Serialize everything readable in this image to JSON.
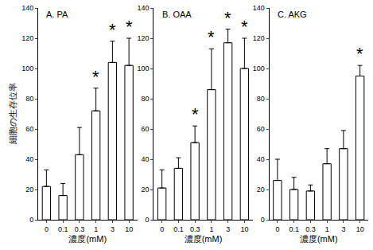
{
  "chart_data": [
    {
      "type": "bar",
      "title": "A. PA",
      "x_label": "濃度(mM)",
      "y_label": "細胞の生存位率",
      "categories": [
        "0",
        "0.1",
        "0.3",
        "1",
        "3",
        "10"
      ],
      "values": [
        22,
        16,
        43,
        72,
        104,
        102
      ],
      "errors": [
        11,
        8,
        18,
        15,
        14,
        18
      ],
      "color": "#ffffff",
      "ylim": [
        0,
        140
      ],
      "yticks": [
        0,
        20,
        40,
        60,
        80,
        100,
        120,
        140
      ],
      "annotations": [
        {
          "category": "1",
          "text": "*"
        },
        {
          "category": "3",
          "text": "*"
        },
        {
          "category": "10",
          "text": "*"
        }
      ]
    },
    {
      "type": "bar",
      "title": "B. OAA",
      "x_label": "濃度(mM)",
      "categories": [
        "0",
        "0.1",
        "0.3",
        "1",
        "3",
        "10"
      ],
      "values": [
        21,
        34,
        51,
        86,
        117,
        100
      ],
      "errors": [
        12,
        7,
        11,
        27,
        9,
        20
      ],
      "color": "#ffffff",
      "ylim": [
        0,
        140
      ],
      "yticks": [
        0,
        20,
        40,
        60,
        80,
        100,
        120,
        140
      ],
      "annotations": [
        {
          "category": "0.3",
          "text": "*"
        },
        {
          "category": "1",
          "text": "*"
        },
        {
          "category": "3",
          "text": "*"
        },
        {
          "category": "10",
          "text": "*"
        }
      ]
    },
    {
      "type": "bar",
      "title": "C. AKG",
      "x_label": "濃度(mM)",
      "categories": [
        "0",
        "0.1",
        "0.3",
        "1",
        "3",
        "10"
      ],
      "values": [
        26,
        20,
        19,
        37,
        47,
        95
      ],
      "errors": [
        14,
        8,
        4,
        10,
        12,
        7
      ],
      "color": "#ffffff",
      "ylim": [
        0,
        140
      ],
      "yticks": [
        0,
        20,
        40,
        60,
        80,
        100,
        120,
        140
      ],
      "annotations": [
        {
          "category": "10",
          "text": "*"
        }
      ]
    }
  ]
}
